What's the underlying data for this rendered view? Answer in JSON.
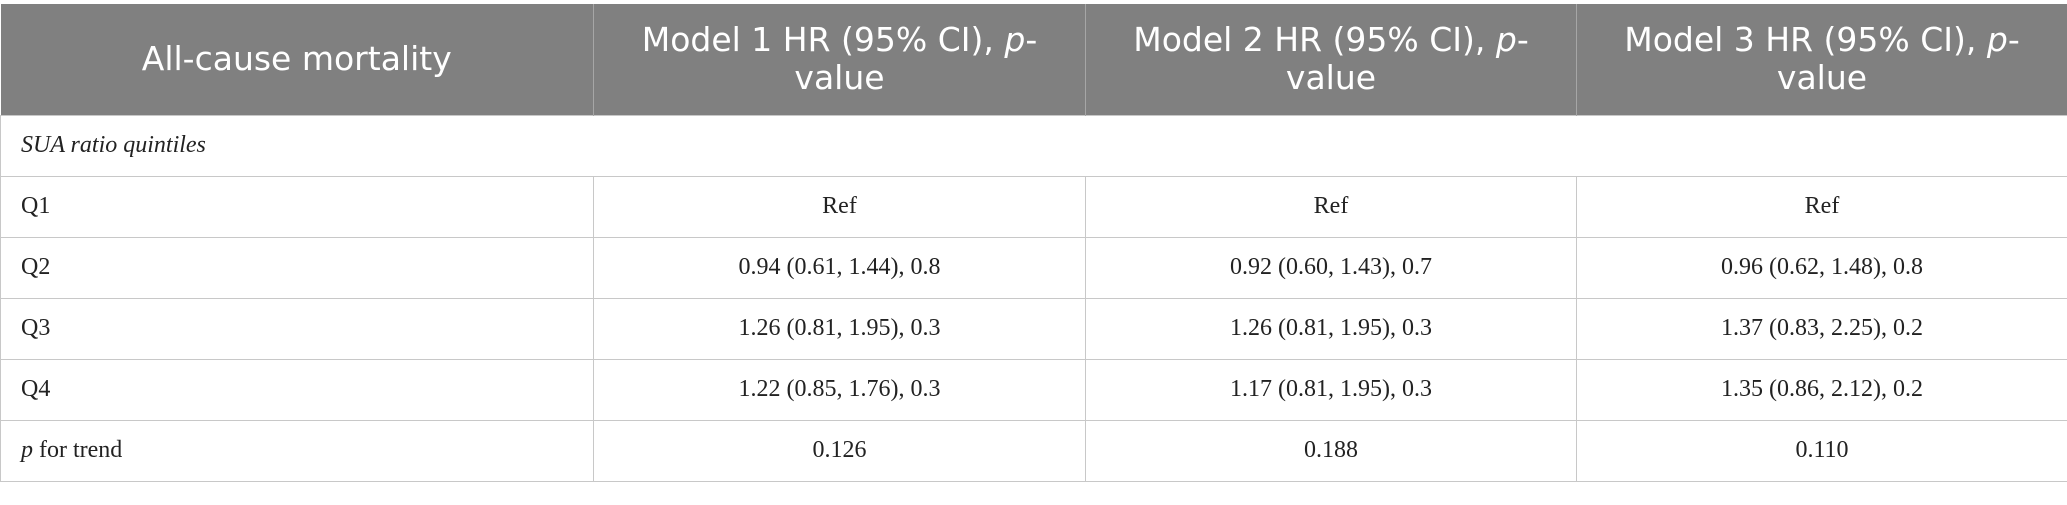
{
  "table": {
    "header": [
      [
        {
          "text": "All-cause mortality"
        }
      ],
      [
        {
          "text": "Model 1 HR (95% CI), "
        },
        {
          "text": "p",
          "italic": true
        },
        {
          "text": "-value"
        }
      ],
      [
        {
          "text": "Model 2 HR (95% CI), "
        },
        {
          "text": "p",
          "italic": true
        },
        {
          "text": "-value"
        }
      ],
      [
        {
          "text": "Model 3 HR (95% CI), "
        },
        {
          "text": "p",
          "italic": true
        },
        {
          "text": "-value"
        }
      ]
    ],
    "section": "SUA ratio quintiles",
    "rows": [
      [
        [
          {
            "text": "Q1"
          }
        ],
        [
          {
            "text": "Ref"
          }
        ],
        [
          {
            "text": "Ref"
          }
        ],
        [
          {
            "text": "Ref"
          }
        ]
      ],
      [
        [
          {
            "text": "Q2"
          }
        ],
        [
          {
            "text": "0.94 (0.61, 1.44), 0.8"
          }
        ],
        [
          {
            "text": "0.92 (0.60, 1.43), 0.7"
          }
        ],
        [
          {
            "text": "0.96 (0.62, 1.48), 0.8"
          }
        ]
      ],
      [
        [
          {
            "text": "Q3"
          }
        ],
        [
          {
            "text": "1.26 (0.81, 1.95), 0.3"
          }
        ],
        [
          {
            "text": "1.26 (0.81, 1.95), 0.3"
          }
        ],
        [
          {
            "text": "1.37 (0.83, 2.25), 0.2"
          }
        ]
      ],
      [
        [
          {
            "text": "Q4"
          }
        ],
        [
          {
            "text": "1.22 (0.85, 1.76), 0.3"
          }
        ],
        [
          {
            "text": "1.17 (0.81, 1.95), 0.3"
          }
        ],
        [
          {
            "text": "1.35 (0.86, 2.12), 0.2"
          }
        ]
      ],
      [
        [
          {
            "text": "p",
            "italic": true
          },
          {
            "text": " for trend"
          }
        ],
        [
          {
            "text": "0.126"
          }
        ],
        [
          {
            "text": "0.188"
          }
        ],
        [
          {
            "text": "0.110"
          }
        ]
      ]
    ]
  }
}
